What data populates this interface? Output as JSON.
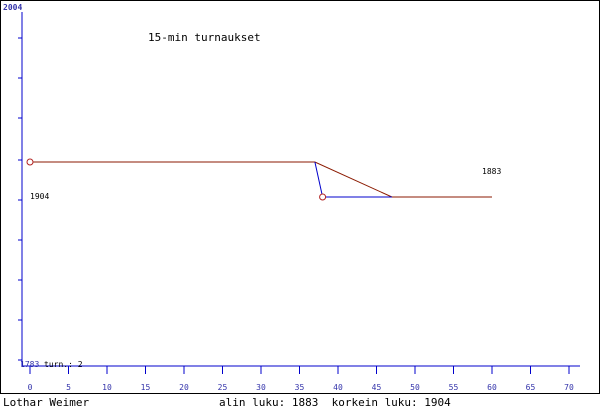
{
  "chart_data": {
    "type": "line",
    "title": "15-min turnaukset",
    "y_top_label": "2004",
    "y_bottom_label": "1783",
    "games_label": "turn.: 2",
    "start_value_label": "1904",
    "end_value_label": "1883",
    "x_ticks": [
      "0",
      "5",
      "10",
      "15",
      "20",
      "25",
      "30",
      "35",
      "40",
      "45",
      "50",
      "55",
      "60",
      "65",
      "70"
    ],
    "xlim": [
      0,
      70
    ],
    "ylim": [
      1783,
      2004
    ],
    "grid": false,
    "series": [
      {
        "color": "#8b1a00",
        "points": [
          [
            0,
            1904
          ],
          [
            37,
            1904
          ],
          [
            47,
            1883
          ],
          [
            60,
            1883
          ]
        ]
      },
      {
        "color": "#0000cc",
        "points": [
          [
            37,
            1904
          ],
          [
            38,
            1883
          ],
          [
            47,
            1883
          ]
        ]
      }
    ],
    "markers": [
      [
        0,
        1904
      ],
      [
        38,
        1883
      ]
    ],
    "footer_left": "Lothar Weimer",
    "footer_center": "alin luku: 1883  korkein luku: 1904"
  },
  "colors": {
    "axis": "#0000cc",
    "axis_label": "#3333aa",
    "line": "#8b1a00",
    "marker": "#b22222",
    "text": "#000000"
  }
}
